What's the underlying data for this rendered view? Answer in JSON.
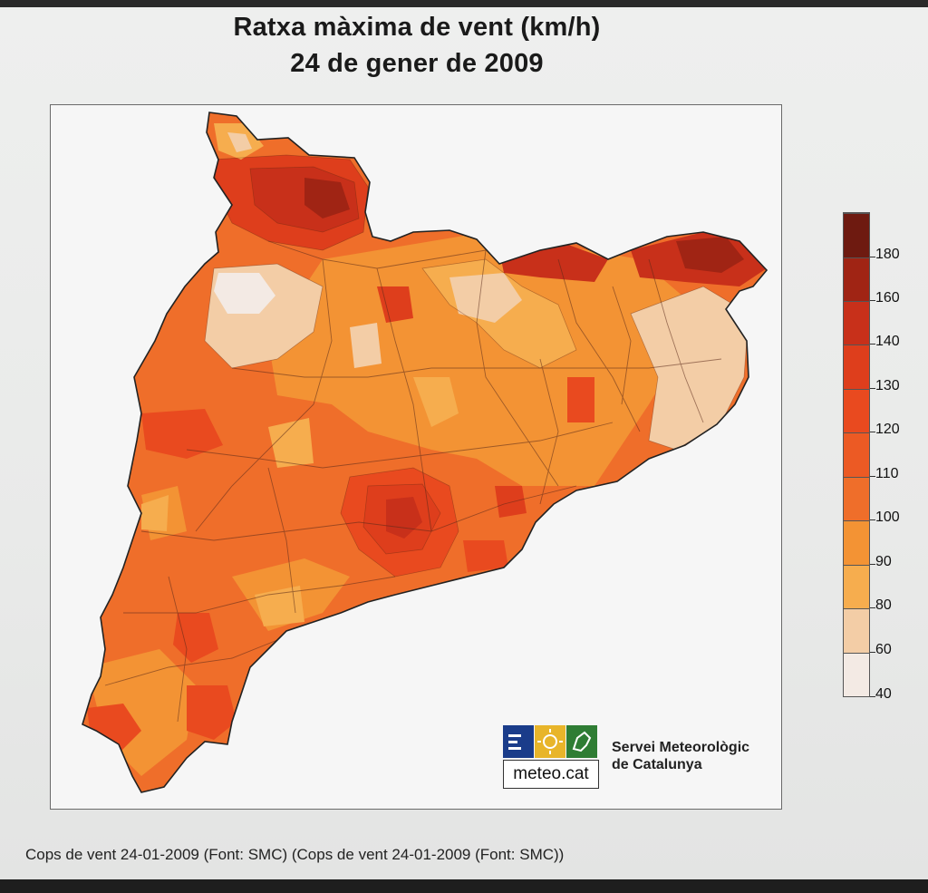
{
  "title_line1": "Ratxa màxima de vent (km/h)",
  "title_line2": "24 de gener de 2009",
  "legend": {
    "unit": "km/h",
    "labels": [
      "180",
      "160",
      "140",
      "130",
      "120",
      "110",
      "100",
      "90",
      "80",
      "60",
      "40"
    ],
    "bins": [
      {
        "range": "180+",
        "color": "#6e1a10"
      },
      {
        "range": "160-180",
        "color": "#a02414"
      },
      {
        "range": "140-160",
        "color": "#c8301a"
      },
      {
        "range": "130-140",
        "color": "#de3e1c"
      },
      {
        "range": "120-130",
        "color": "#e94a1f"
      },
      {
        "range": "110-120",
        "color": "#ec5a24"
      },
      {
        "range": "100-110",
        "color": "#ef6e2a"
      },
      {
        "range": "90-100",
        "color": "#f39334"
      },
      {
        "range": "80-90",
        "color": "#f6ad4e"
      },
      {
        "range": "60-80",
        "color": "#f3cda6"
      },
      {
        "range": "40-60",
        "color": "#f3eae4"
      }
    ]
  },
  "logo": {
    "text": "meteo.cat",
    "tiles": [
      "#1a3c8a",
      "#e8b52a",
      "#2f7d34"
    ]
  },
  "organization": {
    "line1": "Servei Meteorològic",
    "line2": "de Catalunya"
  },
  "caption": "Cops de vent 24-01-2009 (Font: SMC) (Cops de vent 24-01-2009 (Font: SMC))"
}
